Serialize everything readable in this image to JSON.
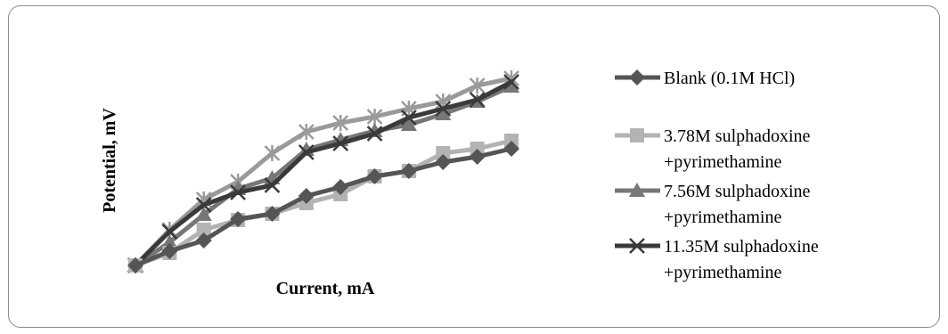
{
  "chart_data": {
    "type": "line",
    "title": "",
    "xlabel": "Current, mA",
    "ylabel": "Potential, mV",
    "x": [
      1,
      2,
      3,
      4,
      5,
      6,
      7,
      8,
      9,
      10,
      11,
      12
    ],
    "ylim": [
      0,
      220
    ],
    "grid": false,
    "legend_position": "right",
    "series": [
      {
        "name": "Blank (0.1M HCl)",
        "name_lines": [
          "Blank (0.1M HCl)"
        ],
        "color": "#555555",
        "marker": "diamond",
        "values": [
          4,
          20,
          32,
          56,
          62,
          82,
          92,
          104,
          110,
          120,
          126,
          135
        ]
      },
      {
        "name": "3.78M sulphadoxine +pyrimethamine",
        "name_lines": [
          "3.78M sulphadoxine",
          "+pyrimethamine"
        ],
        "color": "#b3b3b3",
        "marker": "square",
        "values": [
          4,
          18,
          44,
          55,
          62,
          74,
          84,
          104,
          110,
          130,
          135,
          144
        ]
      },
      {
        "name": "7.56M sulphadoxine +pyrimethamine",
        "name_lines": [
          "7.56M sulphadoxine",
          "+pyrimethamine"
        ],
        "color": "#777777",
        "marker": "triangle",
        "values": [
          4,
          30,
          61,
          90,
          102,
          134,
          145,
          155,
          162,
          174,
          188,
          205
        ]
      },
      {
        "name": "11.35M sulphadoxine +pyrimethamine",
        "name_lines": [
          "11.35M sulphadoxine",
          "+pyrimethamine"
        ],
        "color": "#3a3a3a",
        "marker": "x",
        "values": [
          4,
          42,
          72,
          86,
          94,
          131,
          141,
          152,
          170,
          180,
          190,
          210
        ]
      },
      {
        "name": "",
        "name_lines": [],
        "color": "#9a9a9a",
        "marker": "star",
        "show_in_legend": false,
        "values": [
          4,
          44,
          78,
          98,
          130,
          154,
          164,
          171,
          180,
          188,
          206,
          214
        ]
      }
    ]
  }
}
